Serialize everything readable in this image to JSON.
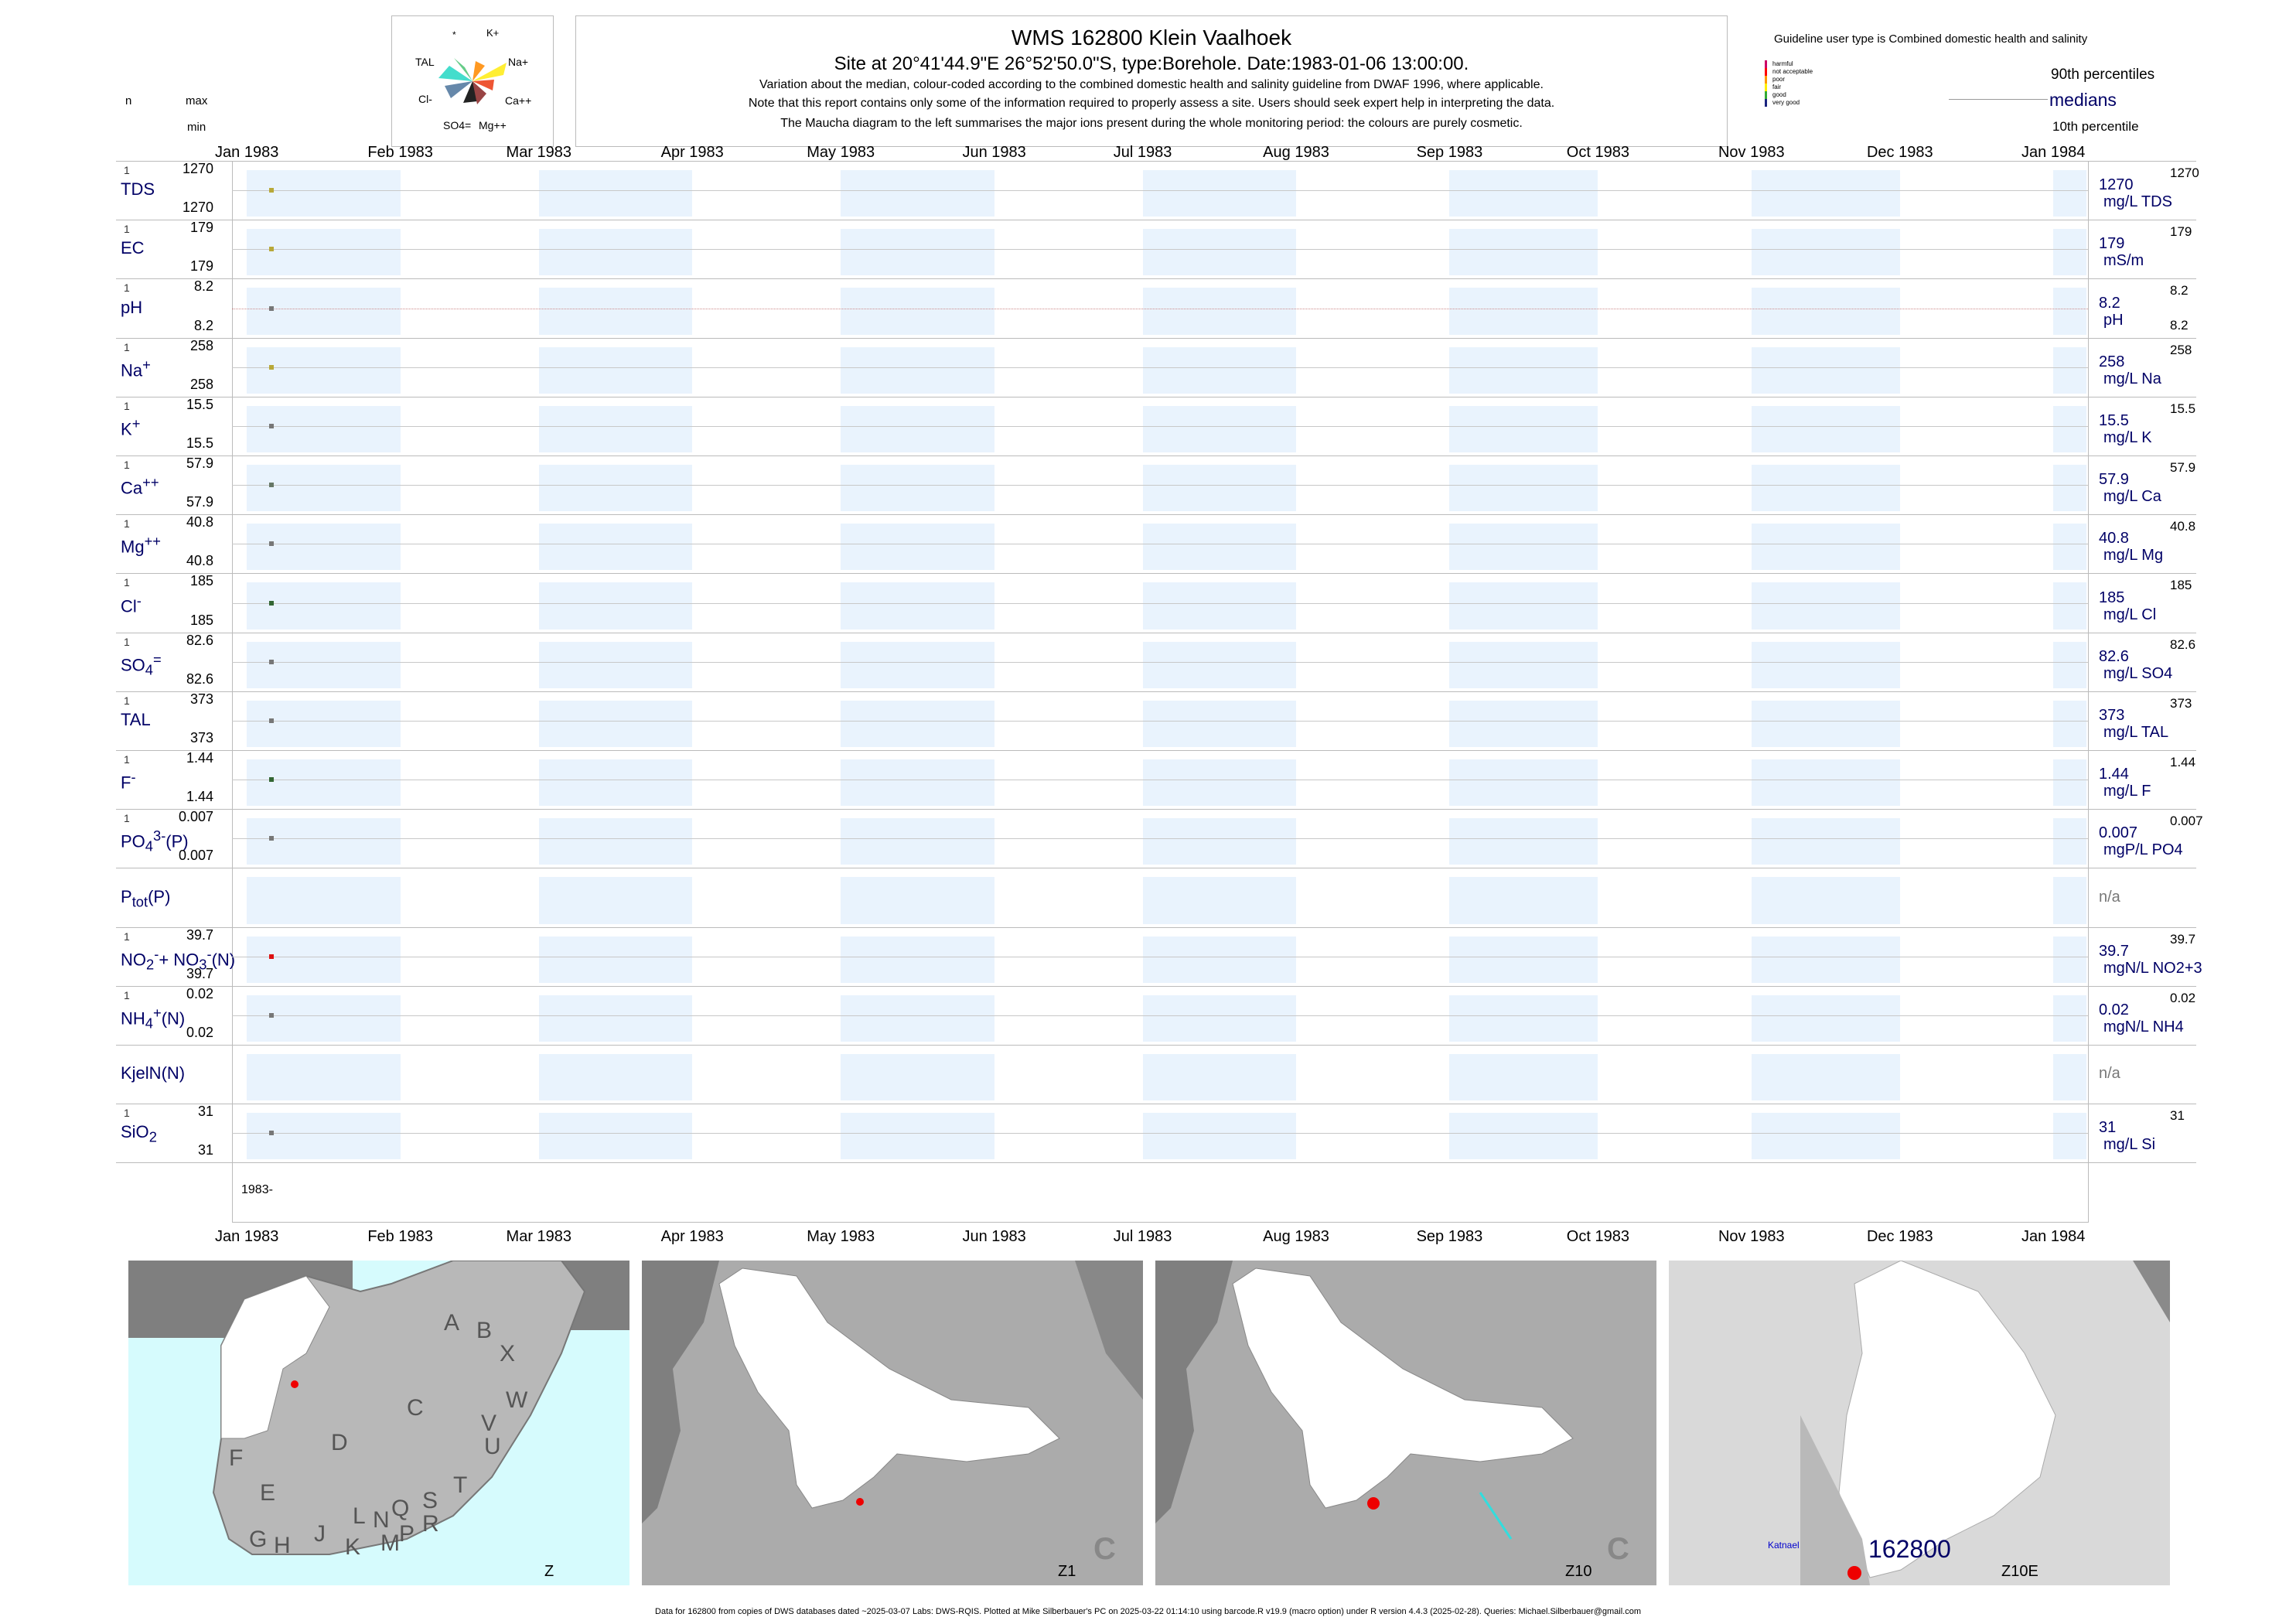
{
  "header": {
    "title": "WMS 162800  Klein Vaalhoek",
    "subtitle": "Site at 20°41'44.9\"E 26°52'50.0\"S, type:Borehole. Date:1983-01-06 13:00:00.",
    "notes": [
      "Variation about the median,  colour-coded according to the combined domestic health and salinity guideline from DWAF 1996, where applicable.",
      "Note that this report contains only some of the information required to properly assess a site. Users should seek expert help in interpreting the data.",
      "The Maucha diagram to the left summarises the major ions present during the whole monitoring period: the colours are purely cosmetic."
    ]
  },
  "left_legend": {
    "n": "n",
    "max": "max",
    "min": "min"
  },
  "maucha": {
    "labels": [
      "*",
      "K+",
      "TAL",
      "Na+",
      "Cl-",
      "Ca++",
      "SO4=",
      "Mg++"
    ]
  },
  "right_legend": {
    "guideline_text": "Guideline user type is Combined domestic health and salinity",
    "classes": [
      {
        "label": "harmful",
        "color": "#cc0066"
      },
      {
        "label": "not acceptable",
        "color": "#ff0000"
      },
      {
        "label": "poor",
        "color": "#ff9900"
      },
      {
        "label": "fair",
        "color": "#ffee00"
      },
      {
        "label": "good",
        "color": "#33aa33"
      },
      {
        "label": "very good",
        "color": "#1a237e"
      }
    ],
    "p90": "90th percentiles",
    "medians": "medians",
    "p10": "10th percentile"
  },
  "chart_data": {
    "type": "scatter",
    "x_axis": {
      "ticks": [
        "Jan 1983",
        "Feb 1983",
        "Mar 1983",
        "Apr 1983",
        "May 1983",
        "Jun 1983",
        "Jul 1983",
        "Aug 1983",
        "Sep 1983",
        "Oct 1983",
        "Nov 1983",
        "Dec 1983",
        "Jan 1984"
      ],
      "range": [
        "1982-12-29",
        "1984-01-08"
      ],
      "year_label": "1983-"
    },
    "sample_date": "1983-01-06",
    "series": [
      {
        "name": "TDS",
        "html": "TDS",
        "n": "1",
        "max": "1270",
        "min": "1270",
        "value": 1270,
        "median": "1270",
        "top": "1270",
        "unit": "mg/L TDS",
        "color": "#b8a838"
      },
      {
        "name": "EC",
        "html": "EC",
        "n": "1",
        "max": "179",
        "min": "179",
        "value": 179,
        "median": "179",
        "top": "179",
        "unit": "mS/m",
        "color": "#b8a838"
      },
      {
        "name": "pH",
        "html": "pH",
        "n": "1",
        "max": "8.2",
        "min": "8.2",
        "value": 8.2,
        "median": "8.2",
        "top": "8.2",
        "bottom": "8.2",
        "unit": "pH",
        "color": "#777777",
        "dotted": true
      },
      {
        "name": "Na+",
        "html": "Na<sup>+</sup>",
        "n": "1",
        "max": "258",
        "min": "258",
        "value": 258,
        "median": "258",
        "top": "258",
        "unit": "mg/L Na",
        "color": "#b8a838"
      },
      {
        "name": "K+",
        "html": "K<sup>+</sup>",
        "n": "1",
        "max": "15.5",
        "min": "15.5",
        "value": 15.5,
        "median": "15.5",
        "top": "15.5",
        "unit": "mg/L K",
        "color": "#777777"
      },
      {
        "name": "Ca++",
        "html": "Ca<sup>++</sup>",
        "n": "1",
        "max": "57.9",
        "min": "57.9",
        "value": 57.9,
        "median": "57.9",
        "top": "57.9",
        "unit": "mg/L Ca",
        "color": "#667766"
      },
      {
        "name": "Mg++",
        "html": "Mg<sup>++</sup>",
        "n": "1",
        "max": "40.8",
        "min": "40.8",
        "value": 40.8,
        "median": "40.8",
        "top": "40.8",
        "unit": "mg/L Mg",
        "color": "#777777"
      },
      {
        "name": "Cl-",
        "html": "Cl<sup>-</sup>",
        "n": "1",
        "max": "185",
        "min": "185",
        "value": 185,
        "median": "185",
        "top": "185",
        "unit": "mg/L Cl",
        "color": "#336633"
      },
      {
        "name": "SO4=",
        "html": "SO<sub>4</sub><sup>=</sup>",
        "n": "1",
        "max": "82.6",
        "min": "82.6",
        "value": 82.6,
        "median": "82.6",
        "top": "82.6",
        "unit": "mg/L SO4",
        "color": "#777777"
      },
      {
        "name": "TAL",
        "html": "TAL",
        "n": "1",
        "max": "373",
        "min": "373",
        "value": 373,
        "median": "373",
        "top": "373",
        "unit": "mg/L TAL",
        "color": "#777777"
      },
      {
        "name": "F-",
        "html": "F<sup>-</sup>",
        "n": "1",
        "max": "1.44",
        "min": "1.44",
        "value": 1.44,
        "median": "1.44",
        "top": "1.44",
        "unit": "mg/L F",
        "color": "#336633"
      },
      {
        "name": "PO4 3-(P)",
        "html": "PO<sub>4</sub><sup>3-</sup>(P)",
        "n": "1",
        "max": "0.007",
        "min": "0.007",
        "value": 0.007,
        "median": "0.007",
        "top": "0.007",
        "unit": "mgP/L PO4",
        "color": "#777777"
      },
      {
        "name": "Ptot(P)",
        "html": "P<sub>tot</sub>(P)",
        "na": "n/a"
      },
      {
        "name": "NO2-+NO3-(N)",
        "html": "NO<sub>2</sub><sup>-</sup>+ NO<sub>3</sub><sup>-</sup>(N)",
        "n": "1",
        "max": "39.7",
        "min": "39.7",
        "value": 39.7,
        "median": "39.7",
        "top": "39.7",
        "unit": "mgN/L NO2+3",
        "color": "#dd1111"
      },
      {
        "name": "NH4+(N)",
        "html": "NH<sub>4</sub><sup>+</sup>(N)",
        "n": "1",
        "max": "0.02",
        "min": "0.02",
        "value": 0.02,
        "median": "0.02",
        "top": "0.02",
        "unit": "mgN/L NH4",
        "color": "#777777"
      },
      {
        "name": "KjelN(N)",
        "html": "KjelN(N)",
        "na": "n/a"
      },
      {
        "name": "SiO2",
        "html": "SiO<sub>2</sub>",
        "n": "1",
        "max": "31",
        "min": "31",
        "value": 31,
        "median": "31",
        "top": "31",
        "unit": "mg/L Si",
        "color": "#777777"
      }
    ]
  },
  "maps": [
    {
      "label": "Z",
      "regions": [
        "A",
        "B",
        "X",
        "W",
        "C",
        "V",
        "U",
        "D",
        "T",
        "F",
        "E",
        "S",
        "Q",
        "N",
        "L",
        "R",
        "P",
        "M",
        "J",
        "G",
        "H",
        "K"
      ]
    },
    {
      "label": "Z1",
      "corner": "C"
    },
    {
      "label": "Z10",
      "corner": "C"
    },
    {
      "label": "Z10E",
      "site": "162800",
      "place": "Katnael"
    }
  ],
  "footer": "Data for 162800 from copies of DWS databases dated ~2025-03-07 Labs: DWS-RQIS. Plotted at Mike Silberbauer's PC on 2025-03-22 01:14:10 using barcode.R v19.9 (macro option) under R version 4.4.3 (2025-02-28). Queries: Michael.Silberbauer@gmail.com"
}
